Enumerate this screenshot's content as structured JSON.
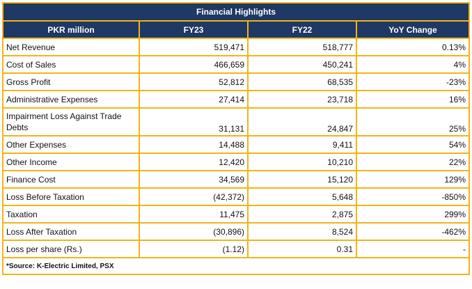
{
  "table": {
    "title": "Financial Highlights",
    "headers": [
      "PKR million",
      "FY23",
      "FY22",
      "YoY Change"
    ],
    "rows": [
      {
        "label": "Net Revenue",
        "fy23": "519,471",
        "fy22": "518,777",
        "yoy": "0.13%"
      },
      {
        "label": "Cost of Sales",
        "fy23": "466,659",
        "fy22": "450,241",
        "yoy": "4%"
      },
      {
        "label": "Gross Profit",
        "fy23": "52,812",
        "fy22": "68,535",
        "yoy": "-23%"
      },
      {
        "label": "Administrative Expenses",
        "fy23": "27,414",
        "fy22": "23,718",
        "yoy": "16%"
      },
      {
        "label": "Impairment Loss Against Trade Debts",
        "fy23": "31,131",
        "fy22": "24,847",
        "yoy": "25%"
      },
      {
        "label": "Other Expenses",
        "fy23": "14,488",
        "fy22": "9,411",
        "yoy": "54%"
      },
      {
        "label": "Other Income",
        "fy23": "12,420",
        "fy22": "10,210",
        "yoy": "22%"
      },
      {
        "label": "Finance Cost",
        "fy23": "34,569",
        "fy22": "15,120",
        "yoy": "129%"
      },
      {
        "label": "Loss Before Taxation",
        "fy23": "(42,372)",
        "fy22": "5,648",
        "yoy": "-850%"
      },
      {
        "label": "Taxation",
        "fy23": "11,475",
        "fy22": "2,875",
        "yoy": "299%"
      },
      {
        "label": "Loss After Taxation",
        "fy23": "(30,896)",
        "fy22": "8,524",
        "yoy": "-462%"
      },
      {
        "label": "Loss per share (Rs.)",
        "fy23": "(1.12)",
        "fy22": "0.31",
        "yoy": "-"
      }
    ],
    "source": "*Source: K-Electric Limited, PSX"
  },
  "colors": {
    "header_bg": "#1f3864",
    "border": "#f2b418"
  }
}
